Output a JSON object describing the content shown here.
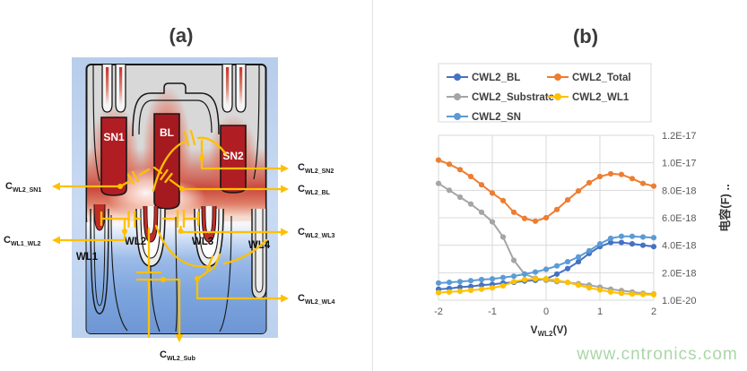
{
  "figure": {
    "panel_a": {
      "title": "(a)",
      "regions": {
        "sn1": "SN1",
        "bl": "BL",
        "sn2": "SN2",
        "wl1": "WL1",
        "wl2": "WL2",
        "wl3": "WL3",
        "wl4": "WL4"
      },
      "cap_labels": {
        "wl2_sn1": {
          "prefix": "C",
          "sub": "WL2_SN1"
        },
        "wl1_wl2": {
          "prefix": "C",
          "sub": "WL1_WL2"
        },
        "wl2_sn2": {
          "prefix": "C",
          "sub": "WL2_SN2"
        },
        "wl2_bl": {
          "prefix": "C",
          "sub": "WL2_BL"
        },
        "wl2_wl3": {
          "prefix": "C",
          "sub": "WL2_WL3"
        },
        "wl2_wl4": {
          "prefix": "C",
          "sub": "WL2_WL4"
        },
        "wl2_sub": {
          "prefix": "C",
          "sub": "WL2_Sub"
        }
      }
    },
    "panel_b": {
      "title": "(b)"
    }
  },
  "chart_data": {
    "type": "line",
    "title": "(b)",
    "xlabel": {
      "main": "V",
      "sub": "WL2",
      "unit": "(V)"
    },
    "ylabel": "电容(F) ..",
    "x_ticks": [
      "-2",
      "-1",
      "0",
      "1",
      "2"
    ],
    "y_ticks": [
      "1.2E-17",
      "1.0E-17",
      "8.0E-18",
      "6.0E-18",
      "4.0E-18",
      "2.0E-18",
      "1.0E-20"
    ],
    "xlim": [
      -2,
      2
    ],
    "ylim_e18": [
      0,
      12
    ],
    "grid": true,
    "legend_position": "top-left",
    "values_unit": "1e-18 F",
    "x": [
      -2,
      -1.8,
      -1.6,
      -1.4,
      -1.2,
      -1,
      -0.8,
      -0.6,
      -0.4,
      -0.2,
      0,
      0.2,
      0.4,
      0.6,
      0.8,
      1,
      1.2,
      1.4,
      1.6,
      1.8,
      2
    ],
    "series": [
      {
        "name": "CWL2_BL",
        "color": "#4472C4",
        "values_e18": [
          0.8,
          0.85,
          0.95,
          1.0,
          1.1,
          1.15,
          1.25,
          1.3,
          1.4,
          1.45,
          1.55,
          1.9,
          2.3,
          2.8,
          3.4,
          3.9,
          4.2,
          4.2,
          4.1,
          4.0,
          3.9
        ]
      },
      {
        "name": "CWL2_Total",
        "color": "#ED7D31",
        "values_e18": [
          10.2,
          9.9,
          9.5,
          9.0,
          8.4,
          7.8,
          7.25,
          6.4,
          5.95,
          5.75,
          6.0,
          6.6,
          7.3,
          7.95,
          8.55,
          9.0,
          9.2,
          9.15,
          8.85,
          8.5,
          8.3
        ]
      },
      {
        "name": "CWL2_Substrate",
        "color": "#A5A5A5",
        "values_e18": [
          8.5,
          8.0,
          7.5,
          7.0,
          6.4,
          5.7,
          4.6,
          2.9,
          1.9,
          1.6,
          1.45,
          1.35,
          1.3,
          1.2,
          1.1,
          0.95,
          0.8,
          0.7,
          0.6,
          0.5,
          0.45
        ]
      },
      {
        "name": "CWL2_WL1",
        "color": "#FFC000",
        "values_e18": [
          0.55,
          0.6,
          0.65,
          0.72,
          0.8,
          0.9,
          1.05,
          1.35,
          1.5,
          1.55,
          1.55,
          1.45,
          1.3,
          1.1,
          0.9,
          0.75,
          0.6,
          0.5,
          0.45,
          0.42,
          0.4
        ]
      },
      {
        "name": "CWL2_SN",
        "color": "#5B9BD5",
        "values_e18": [
          1.25,
          1.3,
          1.35,
          1.42,
          1.5,
          1.55,
          1.65,
          1.75,
          1.9,
          2.05,
          2.25,
          2.5,
          2.8,
          3.15,
          3.6,
          4.1,
          4.5,
          4.65,
          4.65,
          4.6,
          4.55
        ]
      }
    ]
  },
  "watermark": "www.cntronics.com"
}
